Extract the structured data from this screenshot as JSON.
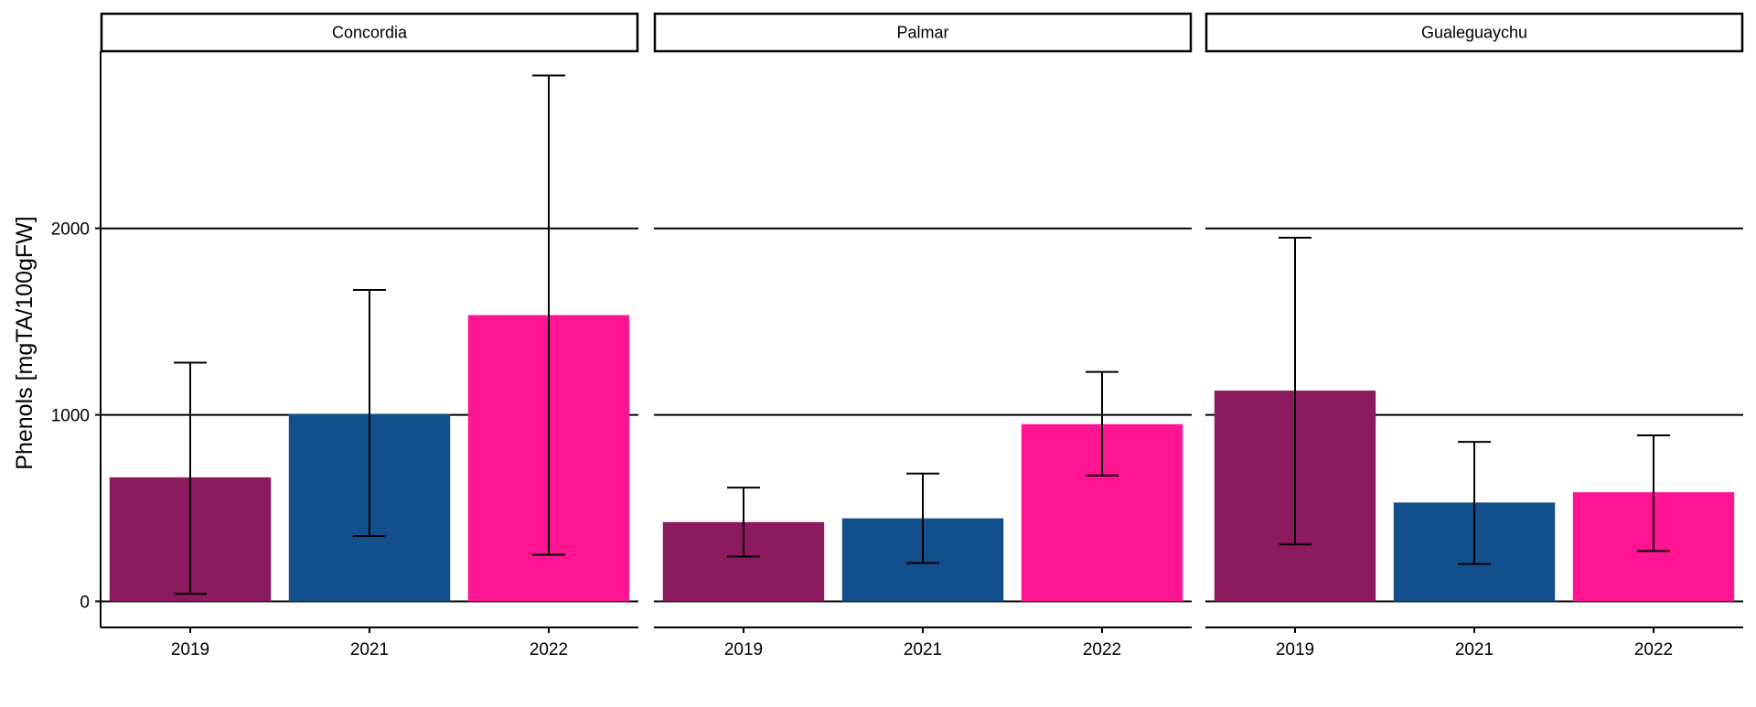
{
  "chart_data": {
    "type": "bar",
    "title": "",
    "xlabel": "",
    "ylabel": "Phenols [mgTA/100gFW]",
    "ylim": [
      -140,
      2950
    ],
    "y_ticks": [
      0,
      1000,
      2000
    ],
    "y_tick_labels": [
      "0",
      "1000",
      "2000"
    ],
    "grid": "horizontal major lines",
    "legend": "none",
    "categories": [
      "2019",
      "2021",
      "2022"
    ],
    "colors": {
      "2019": "#8B1A5E",
      "2021": "#124F8C",
      "2022": "#FF1493"
    },
    "panels": [
      {
        "name": "Concordia",
        "values": [
          665,
          1005,
          1535
        ],
        "error_low": [
          40,
          350,
          250
        ],
        "error_high": [
          1280,
          1670,
          2820
        ]
      },
      {
        "name": "Palmar",
        "values": [
          425,
          445,
          950
        ],
        "error_low": [
          240,
          205,
          675
        ],
        "error_high": [
          610,
          685,
          1230
        ]
      },
      {
        "name": "Gualeguaychu",
        "values": [
          1130,
          530,
          585
        ],
        "error_low": [
          305,
          200,
          270
        ],
        "error_high": [
          1950,
          855,
          890
        ]
      }
    ]
  }
}
